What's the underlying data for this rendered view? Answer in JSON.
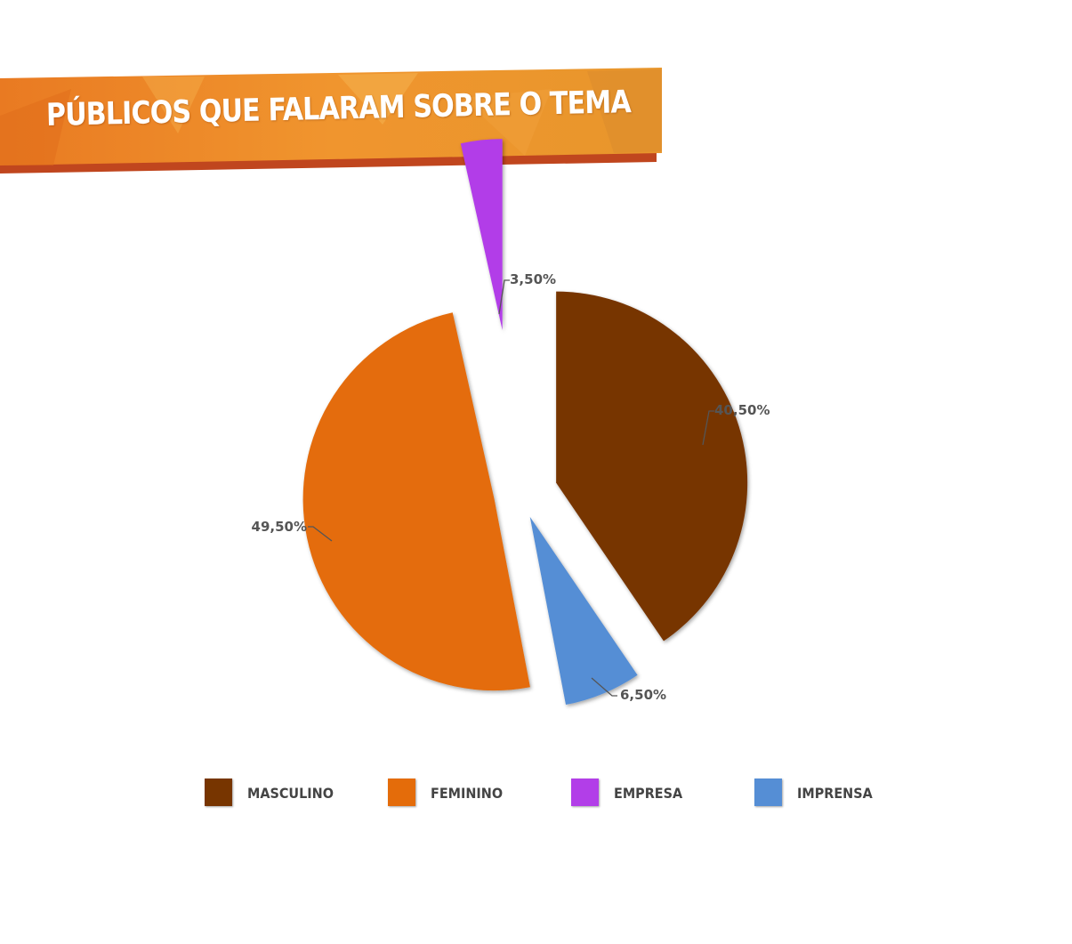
{
  "header": {
    "title": "PÚBLICOS QUE FALARAM SOBRE O TEMA"
  },
  "colors": {
    "banner_orange": "#e8862a",
    "banner_shadow": "#c0461e",
    "label_text": "#555555"
  },
  "chart_data": {
    "type": "pie",
    "title": "PÚBLICOS QUE FALARAM SOBRE O TEMA",
    "legend_position": "bottom",
    "slices": [
      {
        "name": "MASCULINO",
        "value": 40.5,
        "label": "40,50%",
        "color": "#773500"
      },
      {
        "name": "IMPRENSA",
        "value": 6.5,
        "label": "6,50%",
        "color": "#558ed5"
      },
      {
        "name": "FEMININO",
        "value": 49.5,
        "label": "49,50%",
        "color": "#e46c0a"
      },
      {
        "name": "EMPRESA",
        "value": 3.5,
        "label": "3,50%",
        "color": "#b23ee8"
      }
    ],
    "legend": [
      {
        "name": "MASCULINO",
        "color": "#773500"
      },
      {
        "name": "FEMININO",
        "color": "#e46c0a"
      },
      {
        "name": "EMPRESA",
        "color": "#b23ee8"
      },
      {
        "name": "IMPRENSA",
        "color": "#558ed5"
      }
    ]
  }
}
